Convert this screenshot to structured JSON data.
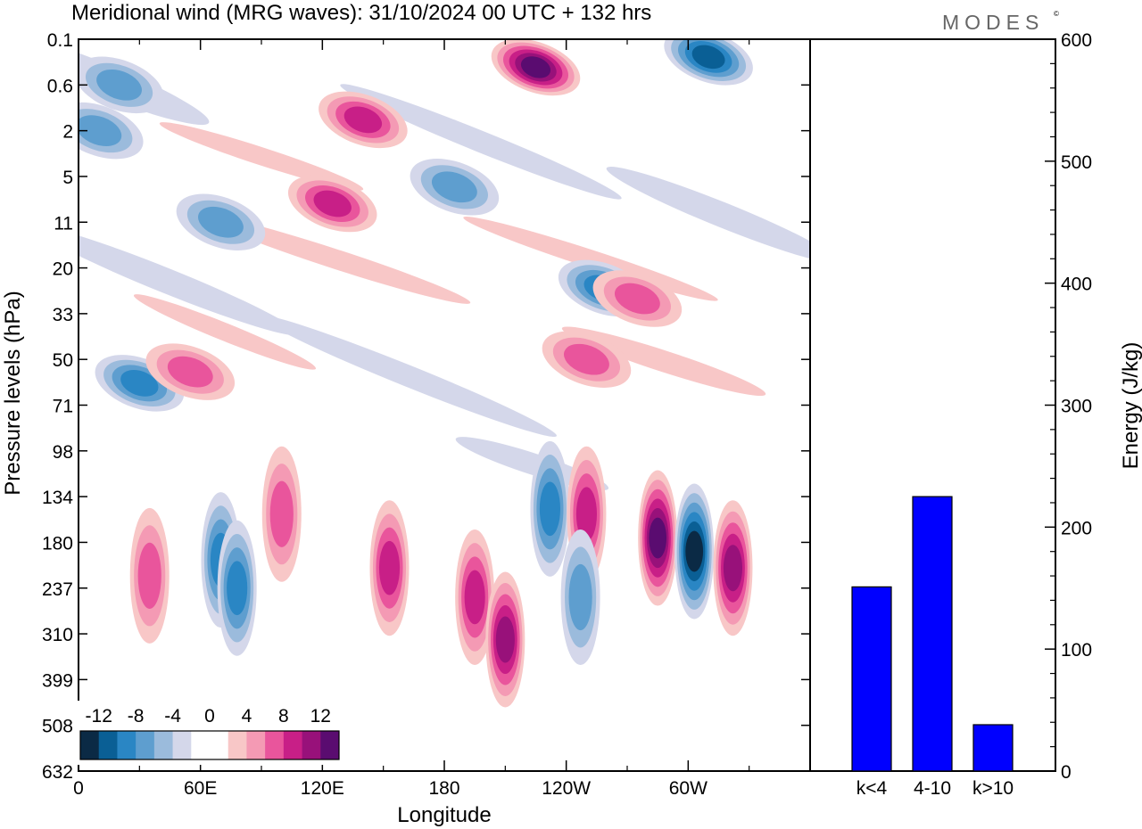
{
  "header": {
    "title": "Meridional wind (MRG waves):  31/10/2024  00 UTC  + 132 hrs",
    "brand": "MODES",
    "brand_mark": "©"
  },
  "colors": {
    "bar": "#0000ff",
    "neg_scale": [
      "#0b2a45",
      "#0a5f95",
      "#2a86c4",
      "#5e9ecf",
      "#9bbbdc",
      "#d4d7ea"
    ],
    "pos_scale": [
      "#f8c7c7",
      "#f49ab4",
      "#e9559c",
      "#c81f87",
      "#98117a",
      "#5a0c70"
    ]
  },
  "chart_data": [
    {
      "type": "heatmap",
      "title": "Meridional wind (MRG waves):  31/10/2024  00 UTC  + 132 hrs",
      "xlabel": "Longitude",
      "ylabel": "Pressure levels (hPa)",
      "x_ticks": [
        "0",
        "60E",
        "120E",
        "180",
        "120W",
        "60W"
      ],
      "x_range_deg": [
        0,
        360
      ],
      "y_ticks": [
        "0.1",
        "0.6",
        "2",
        "5",
        "11",
        "20",
        "33",
        "50",
        "71",
        "98",
        "134",
        "180",
        "237",
        "310",
        "399",
        "508",
        "632"
      ],
      "y_axis_inverted": true,
      "colorbar": {
        "labels": [
          "-12",
          "-8",
          "-4",
          "0",
          "4",
          "8",
          "12"
        ],
        "levels": [
          -14,
          -12,
          -10,
          -8,
          -6,
          -4,
          -2,
          2,
          4,
          6,
          8,
          10,
          12,
          14
        ]
      },
      "features": [
        {
          "lon": 20,
          "level": "0.6",
          "value": -6
        },
        {
          "lon": 10,
          "level": "2",
          "value": -6
        },
        {
          "lon": 140,
          "level": "1.5",
          "value": 8
        },
        {
          "lon": 225,
          "level": "0.3",
          "value": 12
        },
        {
          "lon": 310,
          "level": "0.2",
          "value": -9
        },
        {
          "lon": 70,
          "level": "11",
          "value": -6
        },
        {
          "lon": 125,
          "level": "8",
          "value": 8
        },
        {
          "lon": 185,
          "level": "6",
          "value": -6
        },
        {
          "lon": 258,
          "level": "25",
          "value": -7
        },
        {
          "lon": 275,
          "level": "28",
          "value": 6
        },
        {
          "lon": 30,
          "level": "60",
          "value": -8
        },
        {
          "lon": 55,
          "level": "55",
          "value": 6
        },
        {
          "lon": 250,
          "level": "50",
          "value": 6
        },
        {
          "lon": 35,
          "level": "220",
          "value": 5
        },
        {
          "lon": 70,
          "level": "200",
          "value": -7
        },
        {
          "lon": 78,
          "level": "237",
          "value": -8
        },
        {
          "lon": 100,
          "level": "150",
          "value": 6
        },
        {
          "lon": 153,
          "level": "210",
          "value": 7
        },
        {
          "lon": 195,
          "level": "250",
          "value": 7
        },
        {
          "lon": 210,
          "level": "320",
          "value": 10
        },
        {
          "lon": 232,
          "level": "145",
          "value": -8
        },
        {
          "lon": 250,
          "level": "150",
          "value": 7
        },
        {
          "lon": 247,
          "level": "250",
          "value": -6
        },
        {
          "lon": 285,
          "level": "175",
          "value": 13
        },
        {
          "lon": 303,
          "level": "190",
          "value": -14
        },
        {
          "lon": 322,
          "level": "210",
          "value": 9
        }
      ]
    },
    {
      "type": "bar",
      "categories": [
        "k<4",
        "4-10",
        "k>10"
      ],
      "values": [
        151,
        225,
        38
      ],
      "ylabel": "Energy (J/kg)",
      "ylim": [
        0,
        600
      ],
      "y_ticks": [
        0,
        100,
        200,
        300,
        400,
        500,
        600
      ]
    }
  ]
}
